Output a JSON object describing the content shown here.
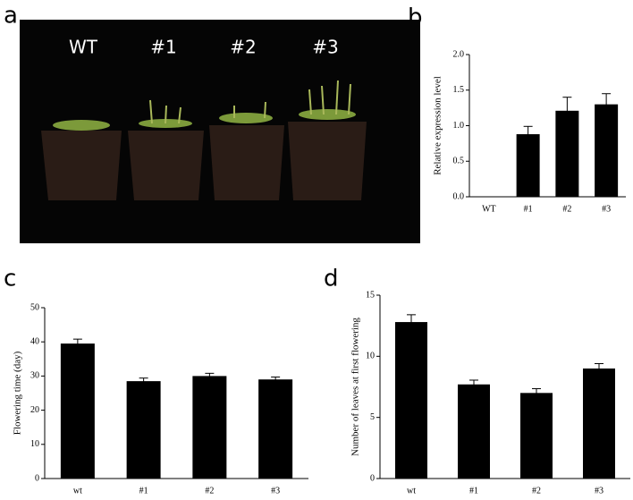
{
  "panel_labels": [
    "a",
    "b",
    "c",
    "d"
  ],
  "photo": {
    "labels": [
      "WT",
      "#1",
      "#2",
      "#3"
    ]
  },
  "chart_data": [
    {
      "type": "bar",
      "y_label": "Relative expression level",
      "categories": [
        "WT",
        "#1",
        "#2",
        "#3"
      ],
      "values": [
        0,
        0.88,
        1.21,
        1.3
      ],
      "errors": [
        0,
        0.11,
        0.19,
        0.15
      ],
      "color": "#000000",
      "ylim": [
        0,
        2
      ],
      "yticks": [
        {
          "value": 0,
          "label": "0.0"
        },
        {
          "value": 0.5,
          "label": "0.5"
        },
        {
          "value": 1,
          "label": "1.0"
        },
        {
          "value": 1.5,
          "label": "1.5"
        },
        {
          "value": 2,
          "label": "2.0"
        }
      ]
    },
    {
      "type": "bar",
      "y_label": "Flowering time (day)",
      "categories": [
        "wt",
        "#1",
        "#2",
        "#3"
      ],
      "values": [
        39.5,
        28.5,
        30,
        29
      ],
      "errors": [
        1.3,
        0.9,
        0.8,
        0.7
      ],
      "color": "#000000",
      "ylim": [
        0,
        50
      ],
      "yticks": [
        0,
        10,
        20,
        30,
        40,
        50
      ]
    },
    {
      "type": "bar",
      "y_label": "Number of leaves at first flowering",
      "categories": [
        "wt",
        "#1",
        "#2",
        "#3"
      ],
      "values": [
        12.8,
        7.7,
        7.0,
        9.0
      ],
      "errors": [
        0.6,
        0.35,
        0.35,
        0.4
      ],
      "color": "#000000",
      "ylim": [
        0,
        15
      ],
      "yticks": [
        0,
        5,
        10,
        15
      ]
    }
  ]
}
